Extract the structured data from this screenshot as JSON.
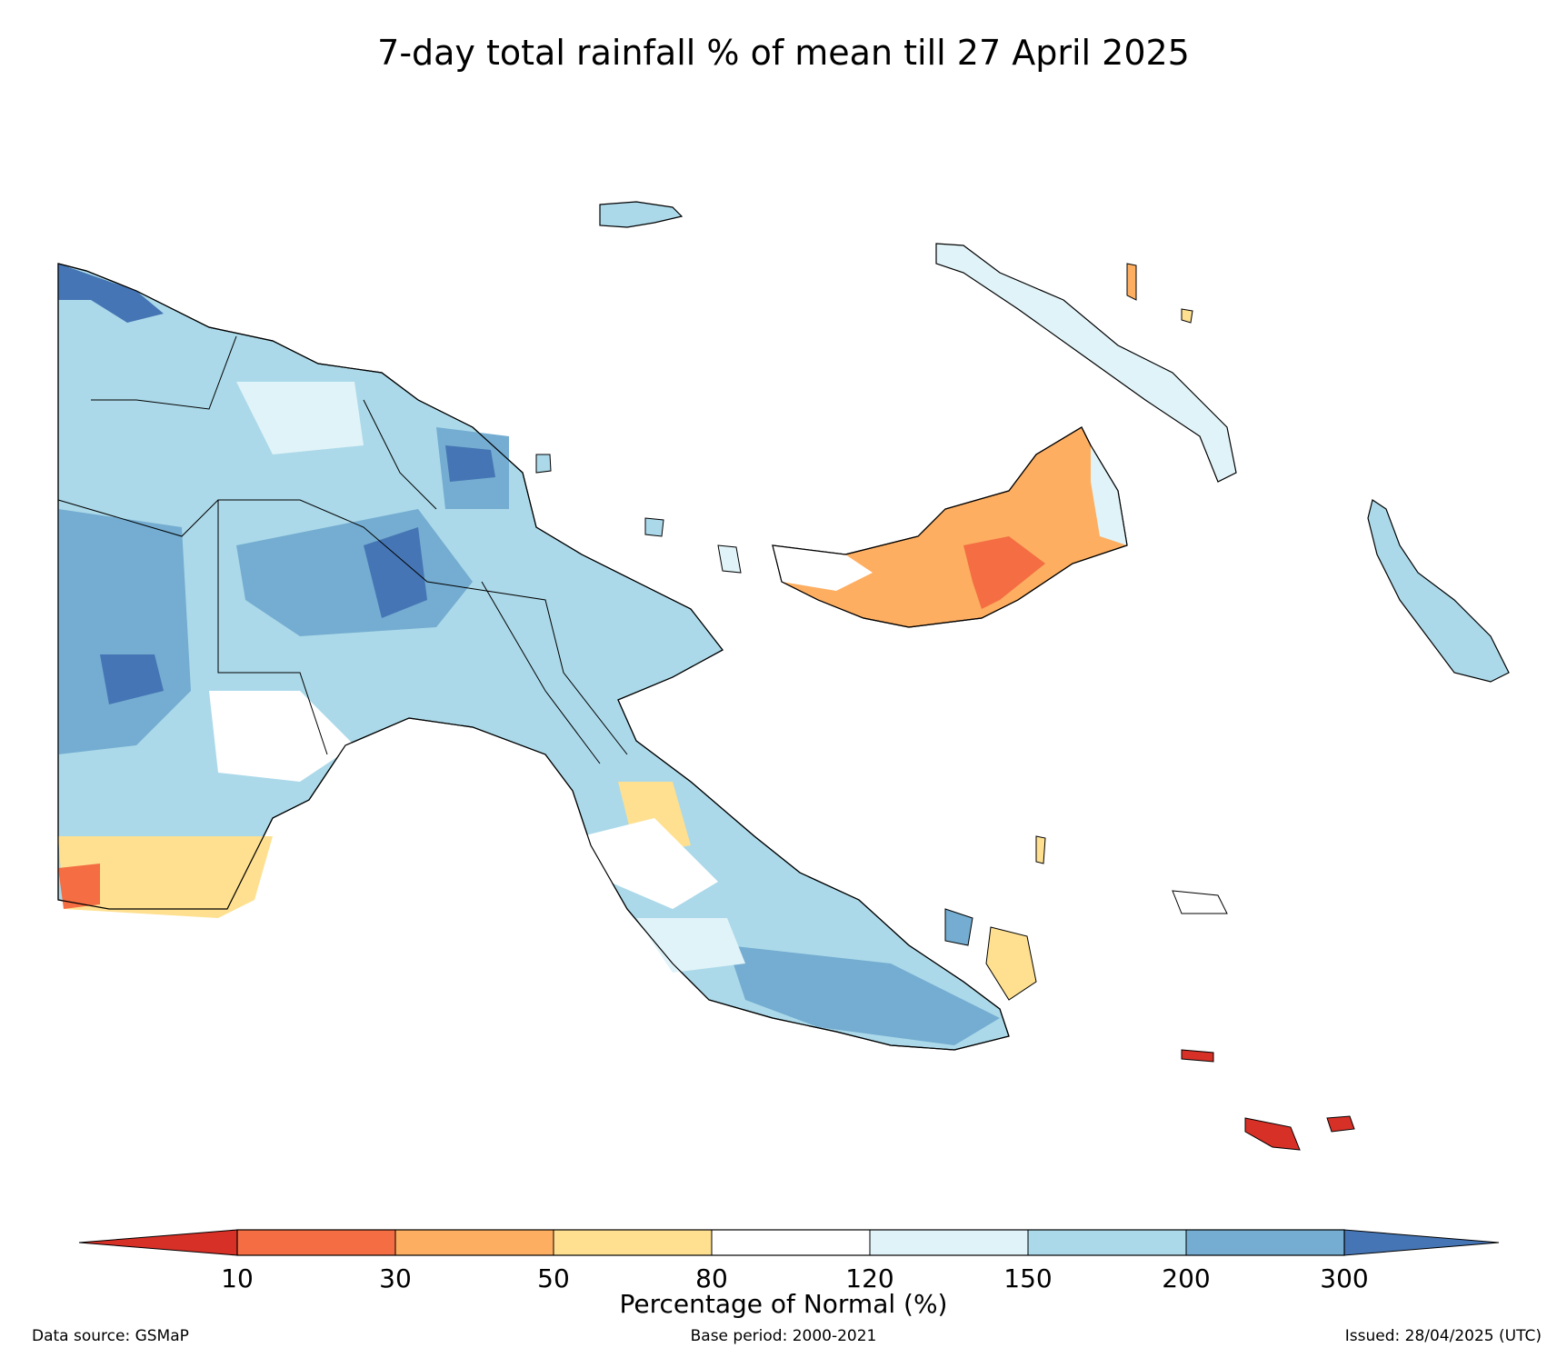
{
  "title": "7-day total rainfall % of mean till 27 April 2025",
  "colorbar": {
    "ticks": [
      "10",
      "30",
      "50",
      "80",
      "120",
      "150",
      "200",
      "300"
    ],
    "label": "Percentage of Normal (%)",
    "under_color": "#d73027",
    "colors": [
      "#f46d43",
      "#fdae61",
      "#fee090",
      "#ffffff",
      "#e0f3f8",
      "#abd9e9",
      "#74add1"
    ],
    "over_color": "#4575b4"
  },
  "footer": {
    "source": "Data source: GSMaP",
    "base_period": "Base period: 2000-2021",
    "issued": "Issued: 28/04/2025 (UTC)"
  }
}
